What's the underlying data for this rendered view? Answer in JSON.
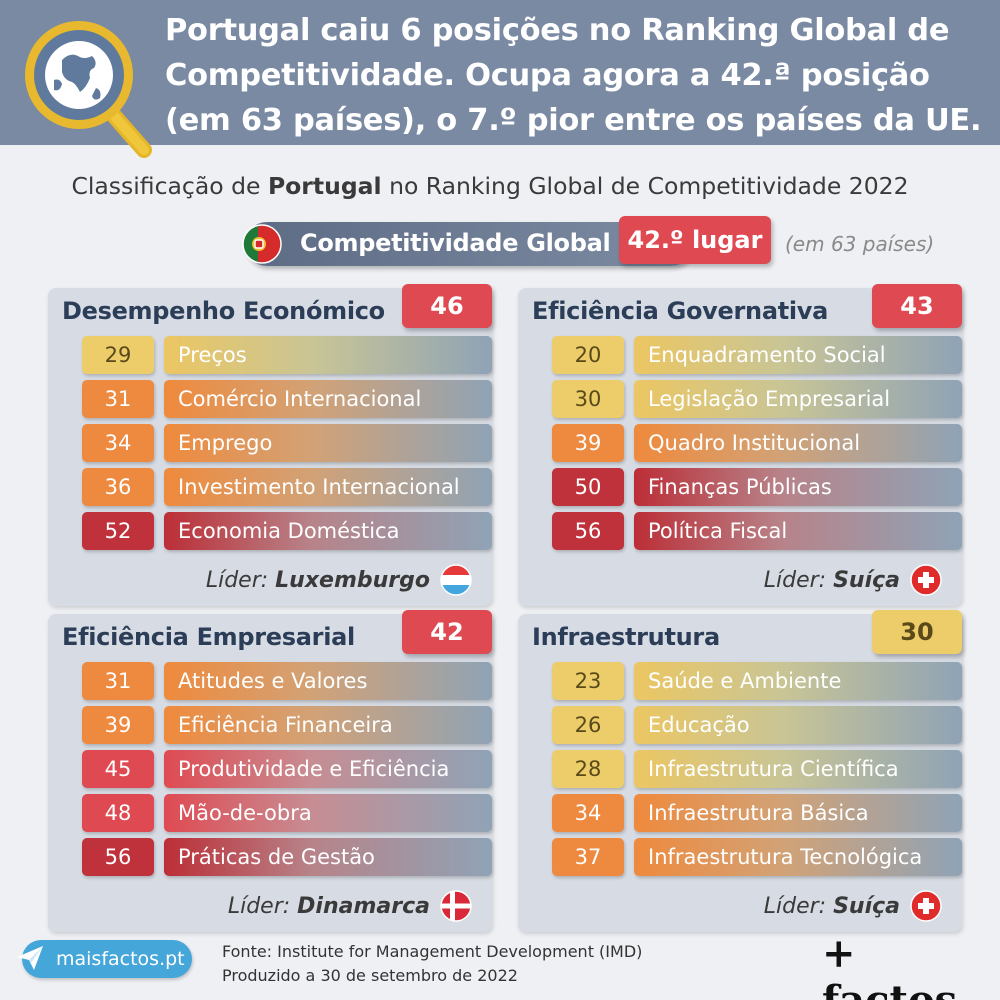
{
  "headline": "Portugal caiu 6 posições no Ranking Global de Competitividade. Ocupa agora a 42.ª posição (em 63 países), o 7.º pior entre os países da UE.",
  "subtitle": {
    "before": "Classificação de ",
    "bold": "Portugal",
    "after": " no Ranking Global de Competitividade 2022"
  },
  "global": {
    "label": "Competitividade Global",
    "rank": "42.º lugar",
    "note": "(em 63 países)"
  },
  "panels": [
    {
      "title": "Desempenho Económico",
      "score": "46",
      "score_color": "#df4a52",
      "items": [
        {
          "rank": "29",
          "label": "Preços"
        },
        {
          "rank": "31",
          "label": "Comércio Internacional"
        },
        {
          "rank": "34",
          "label": "Emprego"
        },
        {
          "rank": "36",
          "label": "Investimento Internacional"
        },
        {
          "rank": "52",
          "label": "Economia Doméstica"
        }
      ],
      "leader_prefix": "Líder: ",
      "leader": "Luxemburgo",
      "leader_flag": "luxembourg-flag-icon"
    },
    {
      "title": "Eficiência Governativa",
      "score": "43",
      "score_color": "#df4a52",
      "items": [
        {
          "rank": "20",
          "label": "Enquadramento Social"
        },
        {
          "rank": "30",
          "label": "Legislação Empresarial"
        },
        {
          "rank": "39",
          "label": "Quadro Institucional"
        },
        {
          "rank": "50",
          "label": "Finanças Públicas"
        },
        {
          "rank": "56",
          "label": "Política Fiscal"
        }
      ],
      "leader_prefix": "Líder: ",
      "leader": "Suíça",
      "leader_flag": "switzerland-flag-icon"
    },
    {
      "title": "Eficiência Empresarial",
      "score": "42",
      "score_color": "#df4a52",
      "items": [
        {
          "rank": "31",
          "label": "Atitudes e Valores"
        },
        {
          "rank": "39",
          "label": "Eficiência Financeira"
        },
        {
          "rank": "45",
          "label": "Produtividade e Eficiência"
        },
        {
          "rank": "48",
          "label": "Mão-de-obra"
        },
        {
          "rank": "56",
          "label": "Práticas de Gestão"
        }
      ],
      "leader_prefix": "Líder: ",
      "leader": "Dinamarca",
      "leader_flag": "denmark-flag-icon"
    },
    {
      "title": "Infraestrutura",
      "score": "30",
      "score_color": "#eccd6a",
      "items": [
        {
          "rank": "23",
          "label": "Saúde e Ambiente"
        },
        {
          "rank": "26",
          "label": "Educação"
        },
        {
          "rank": "28",
          "label": "Infraestrutura Científica"
        },
        {
          "rank": "34",
          "label": "Infraestrutura Básica"
        },
        {
          "rank": "37",
          "label": "Infraestrutura Tecnológica"
        }
      ],
      "leader_prefix": "Líder: ",
      "leader": "Suíça",
      "leader_flag": "switzerland-flag-icon"
    }
  ],
  "footer": {
    "site": "maisfactos.pt",
    "source": "Fonte: Institute for Management Development (IMD)",
    "produced": "Produzido a 30 de setembro de 2022",
    "brand": "+ factos"
  },
  "colors": {
    "header_bg": "#7a8aa3",
    "yellow": "#eccd6a",
    "orange": "#ee8a3f",
    "red": "#df4a52",
    "dark_red": "#c0323b"
  }
}
